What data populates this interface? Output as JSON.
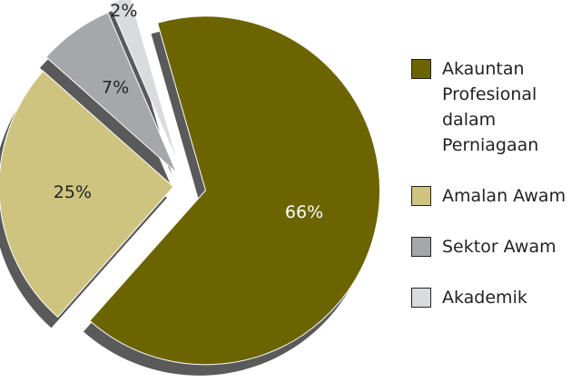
{
  "chart_data": {
    "type": "pie",
    "categories": [
      "Akauntan Profesional dalam Perniagaan",
      "Amalan Awam",
      "Sektor Awam",
      "Akademik"
    ],
    "values": [
      66,
      25,
      7,
      2
    ],
    "value_labels": [
      "66%",
      "25%",
      "7%",
      "2%"
    ],
    "colors": [
      "#6b6400",
      "#cfc47f",
      "#a6a7ab",
      "#dadbdd"
    ],
    "legend": "right"
  }
}
